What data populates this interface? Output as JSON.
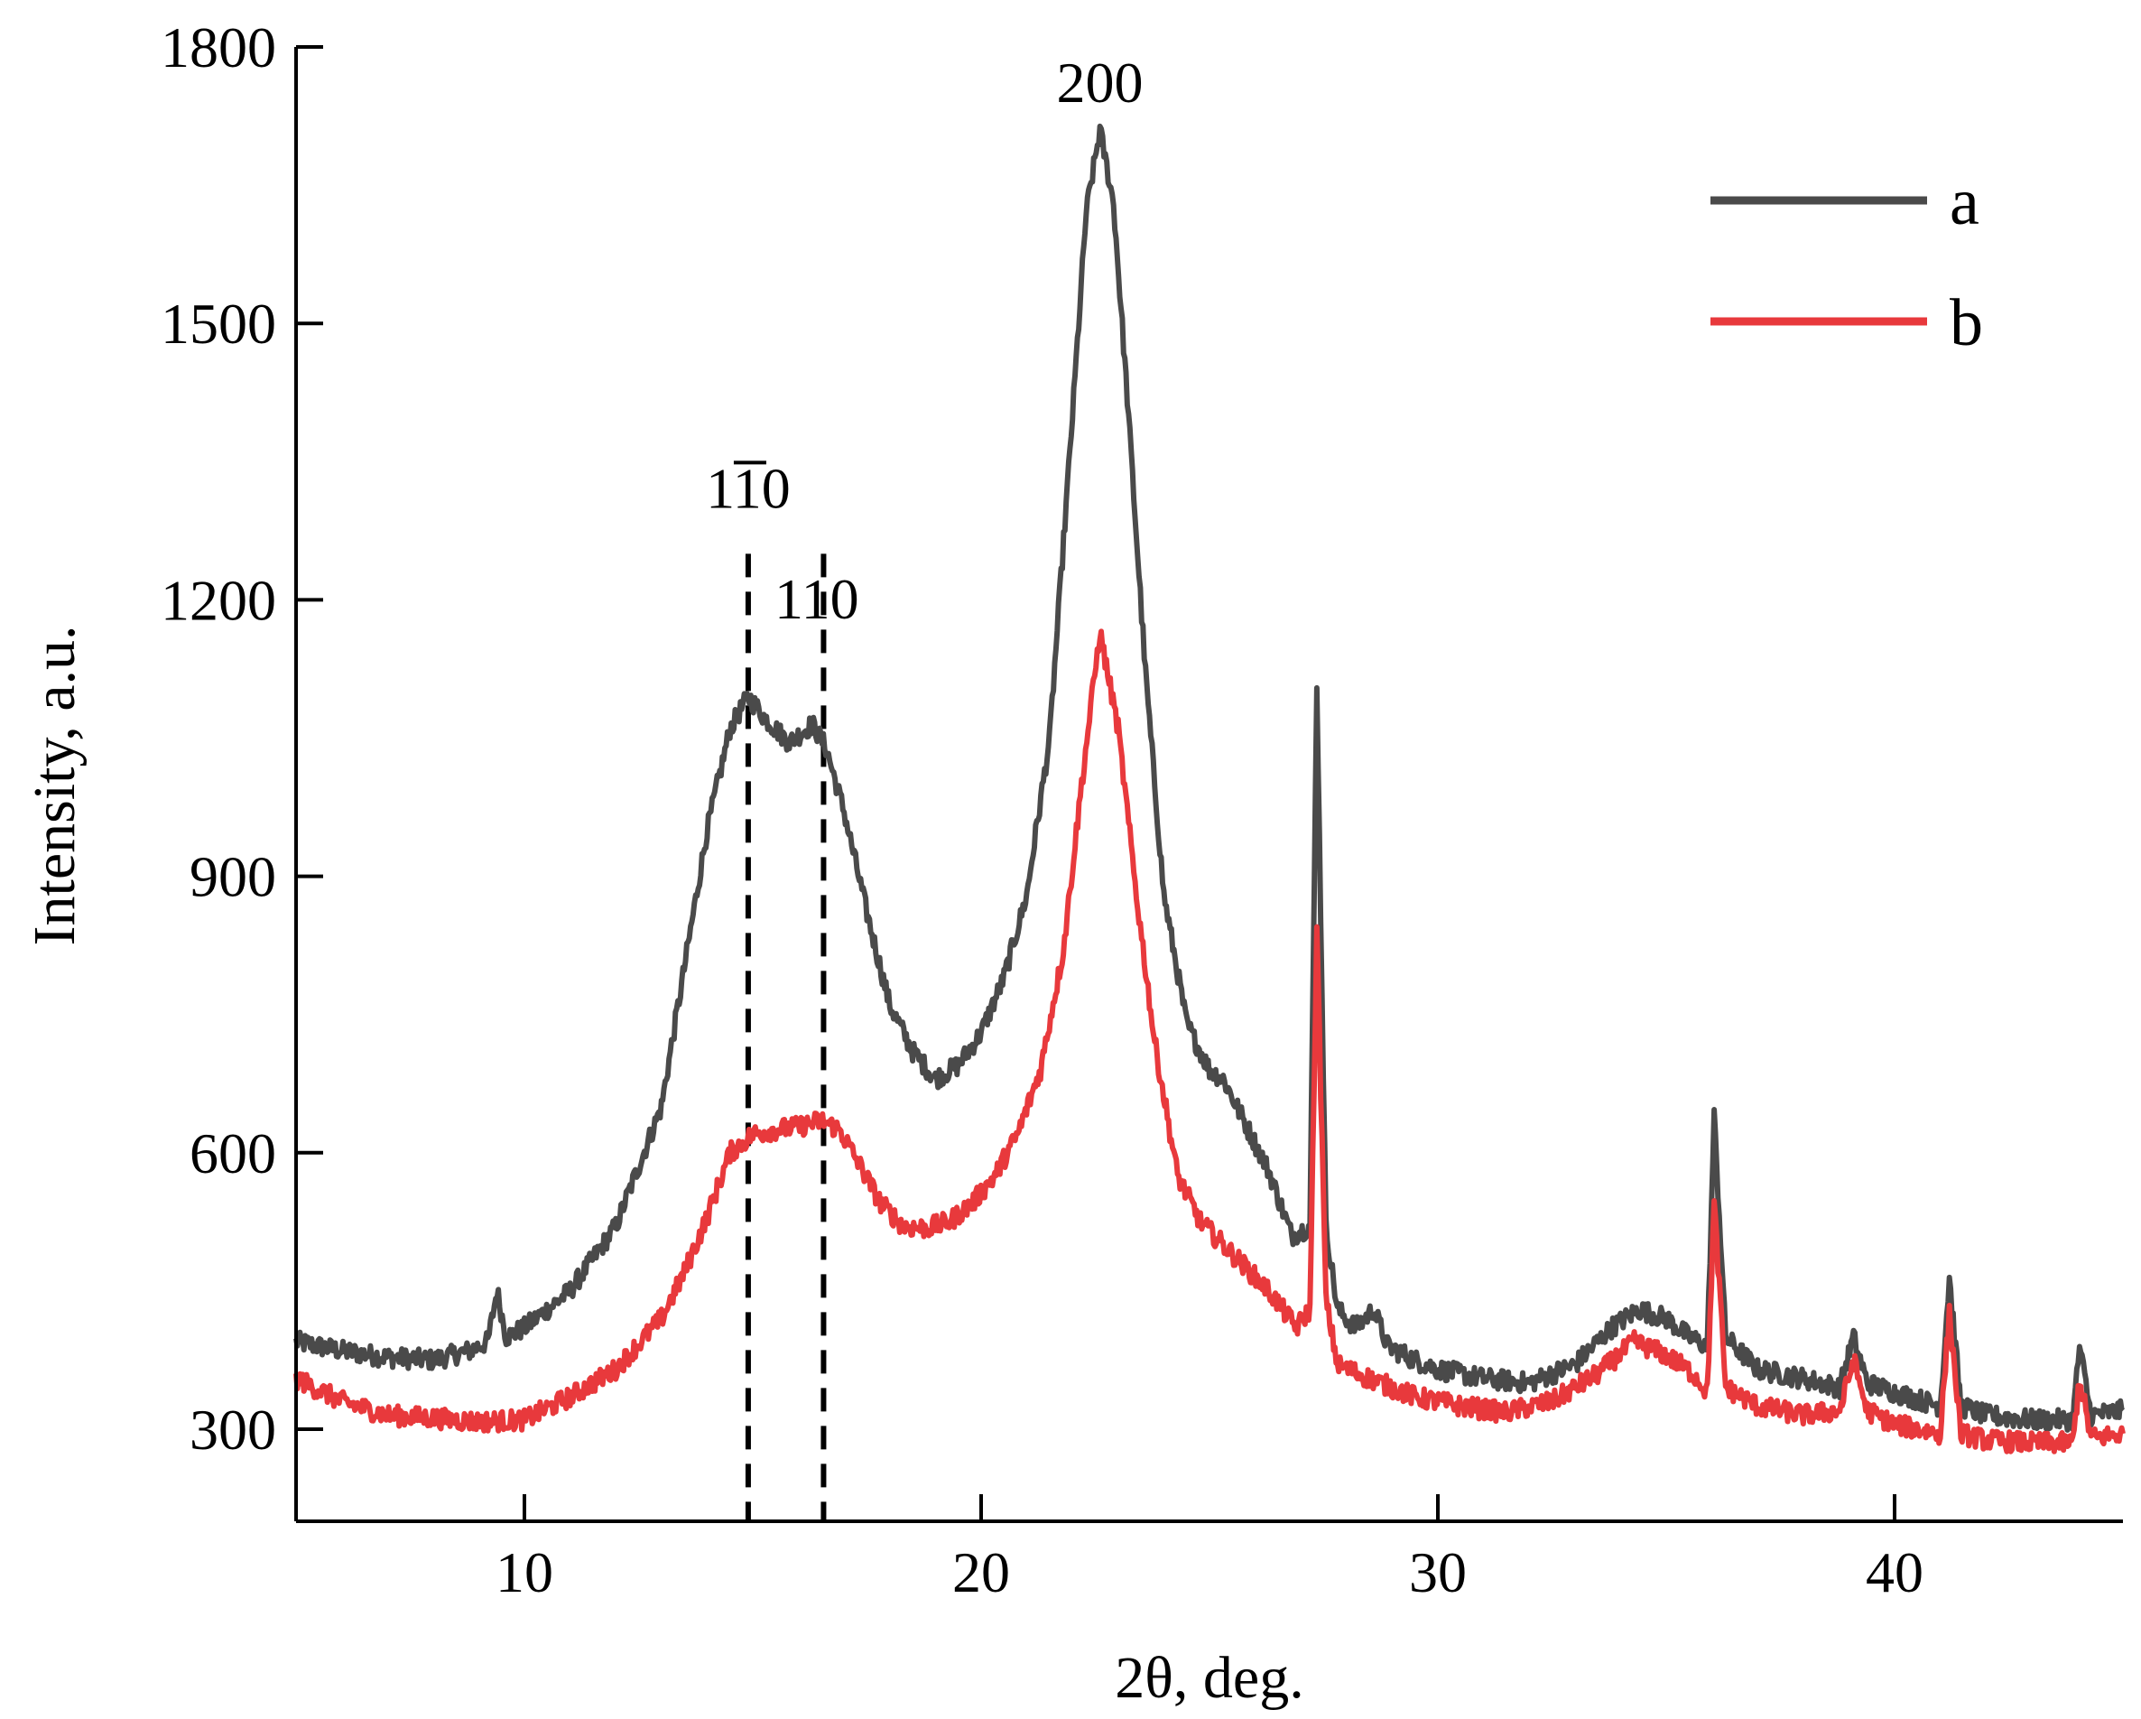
{
  "chart_data": {
    "type": "line",
    "title": "",
    "xlabel": "2θ, deg.",
    "ylabel": "Intensity, a.u.",
    "xlim": [
      5,
      45
    ],
    "ylim": [
      200,
      1800
    ],
    "xticks": [
      "10",
      "20",
      "30",
      "40"
    ],
    "yticks": [
      "300",
      "600",
      "900",
      "1200",
      "1500",
      "1800"
    ],
    "legend_position": "top-right",
    "series": [
      {
        "name": "a",
        "color": "#4a4a4a",
        "points": [
          [
            5,
            395
          ],
          [
            6,
            385
          ],
          [
            7,
            378
          ],
          [
            8,
            375
          ],
          [
            8.8,
            385
          ],
          [
            9.2,
            395
          ],
          [
            9.4,
            450
          ],
          [
            9.6,
            400
          ],
          [
            10,
            410
          ],
          [
            11,
            450
          ],
          [
            12,
            520
          ],
          [
            13,
            650
          ],
          [
            13.5,
            800
          ],
          [
            14,
            950
          ],
          [
            14.5,
            1060
          ],
          [
            14.9,
            1095
          ],
          [
            15.3,
            1070
          ],
          [
            15.8,
            1045
          ],
          [
            16.3,
            1065
          ],
          [
            16.6,
            1040
          ],
          [
            17,
            970
          ],
          [
            17.5,
            860
          ],
          [
            18,
            760
          ],
          [
            18.5,
            710
          ],
          [
            19,
            680
          ],
          [
            19.5,
            695
          ],
          [
            20,
            730
          ],
          [
            20.5,
            790
          ],
          [
            21,
            880
          ],
          [
            21.5,
            1050
          ],
          [
            22,
            1400
          ],
          [
            22.3,
            1620
          ],
          [
            22.6,
            1710
          ],
          [
            22.9,
            1630
          ],
          [
            23.2,
            1420
          ],
          [
            23.6,
            1120
          ],
          [
            24,
            880
          ],
          [
            24.5,
            740
          ],
          [
            25,
            690
          ],
          [
            25.3,
            680
          ],
          [
            25.7,
            640
          ],
          [
            26.3,
            580
          ],
          [
            26.8,
            510
          ],
          [
            27.2,
            520
          ],
          [
            27.35,
            1110
          ],
          [
            27.55,
            520
          ],
          [
            27.8,
            430
          ],
          [
            28.2,
            410
          ],
          [
            28.6,
            430
          ],
          [
            28.9,
            390
          ],
          [
            29.5,
            375
          ],
          [
            30,
            365
          ],
          [
            31,
            355
          ],
          [
            32,
            350
          ],
          [
            33,
            370
          ],
          [
            33.8,
            410
          ],
          [
            34.4,
            430
          ],
          [
            35,
            420
          ],
          [
            35.5,
            400
          ],
          [
            35.9,
            390
          ],
          [
            36.05,
            640
          ],
          [
            36.3,
            400
          ],
          [
            37,
            365
          ],
          [
            38,
            355
          ],
          [
            38.8,
            345
          ],
          [
            39.1,
            400
          ],
          [
            39.4,
            350
          ],
          [
            40,
            340
          ],
          [
            41,
            325
          ],
          [
            41.2,
            465
          ],
          [
            41.45,
            325
          ],
          [
            42,
            315
          ],
          [
            43,
            310
          ],
          [
            43.9,
            310
          ],
          [
            44.05,
            390
          ],
          [
            44.3,
            315
          ],
          [
            45,
            320
          ]
        ]
      },
      {
        "name": "b",
        "color": "#e8393c",
        "points": [
          [
            5,
            355
          ],
          [
            6,
            330
          ],
          [
            7,
            315
          ],
          [
            8,
            312
          ],
          [
            9,
            308
          ],
          [
            10,
            310
          ],
          [
            11,
            335
          ],
          [
            12,
            365
          ],
          [
            13,
            420
          ],
          [
            13.5,
            470
          ],
          [
            14,
            530
          ],
          [
            14.5,
            600
          ],
          [
            15,
            620
          ],
          [
            15.5,
            625
          ],
          [
            16,
            628
          ],
          [
            16.5,
            635
          ],
          [
            16.9,
            625
          ],
          [
            17.3,
            590
          ],
          [
            17.8,
            545
          ],
          [
            18.3,
            520
          ],
          [
            18.8,
            518
          ],
          [
            19.3,
            525
          ],
          [
            19.8,
            545
          ],
          [
            20.3,
            575
          ],
          [
            20.8,
            620
          ],
          [
            21.3,
            690
          ],
          [
            21.8,
            820
          ],
          [
            22.2,
            1000
          ],
          [
            22.6,
            1165
          ],
          [
            23,
            1060
          ],
          [
            23.4,
            880
          ],
          [
            23.8,
            720
          ],
          [
            24.3,
            575
          ],
          [
            24.8,
            525
          ],
          [
            25.5,
            490
          ],
          [
            26.3,
            450
          ],
          [
            26.9,
            410
          ],
          [
            27.2,
            430
          ],
          [
            27.35,
            840
          ],
          [
            27.55,
            440
          ],
          [
            27.8,
            370
          ],
          [
            28.5,
            355
          ],
          [
            29.5,
            335
          ],
          [
            30.5,
            325
          ],
          [
            31.5,
            318
          ],
          [
            32.5,
            330
          ],
          [
            33.5,
            360
          ],
          [
            34.3,
            395
          ],
          [
            35,
            380
          ],
          [
            35.6,
            360
          ],
          [
            35.9,
            340
          ],
          [
            36.05,
            545
          ],
          [
            36.3,
            345
          ],
          [
            37,
            325
          ],
          [
            38,
            315
          ],
          [
            38.8,
            320
          ],
          [
            39.1,
            375
          ],
          [
            39.4,
            320
          ],
          [
            40,
            305
          ],
          [
            41,
            295
          ],
          [
            41.2,
            425
          ],
          [
            41.45,
            295
          ],
          [
            42,
            288
          ],
          [
            43,
            285
          ],
          [
            43.9,
            285
          ],
          [
            44.05,
            355
          ],
          [
            44.3,
            290
          ],
          [
            45,
            295
          ]
        ]
      }
    ],
    "reference_lines": [
      {
        "x": 14.9,
        "style": "dashed",
        "color": "#000000"
      },
      {
        "x": 16.55,
        "style": "dashed",
        "color": "#000000"
      }
    ],
    "annotations": [
      {
        "id": "peak-1-10",
        "main": "1",
        "overbar": "1",
        "tail": "0",
        "x": 14.9,
        "y": 1300
      },
      {
        "id": "peak-110",
        "text": "110",
        "x": 16.4,
        "y": 1180
      },
      {
        "id": "peak-200",
        "text": "200",
        "x": 22.6,
        "y": 1740
      }
    ]
  }
}
